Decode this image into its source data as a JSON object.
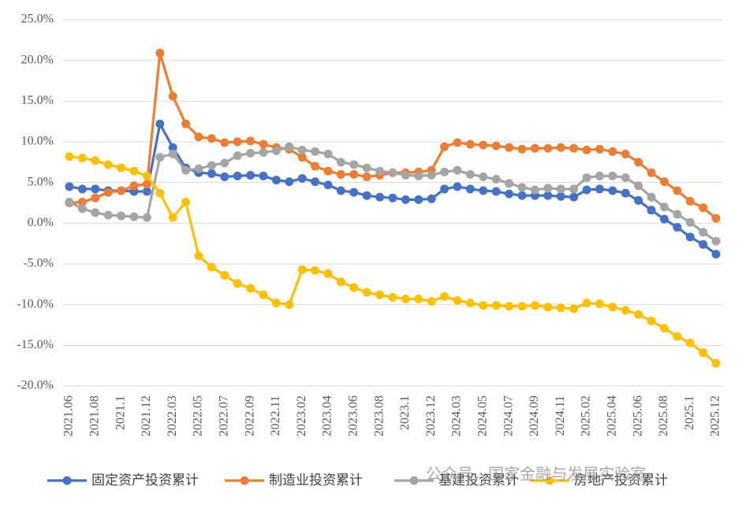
{
  "chart_data": {
    "type": "line",
    "categories": [
      "2021.06",
      null,
      "2021.08",
      null,
      "2021.1",
      null,
      "2021.12",
      null,
      "2022.03",
      null,
      "2022.05",
      null,
      "2022.07",
      null,
      "2022.09",
      null,
      "2022.11",
      null,
      "2023.02",
      null,
      "2023.04",
      null,
      "2023.06",
      null,
      "2023.08",
      null,
      "2023.1",
      null,
      "2023.12",
      null,
      "2024.03",
      null,
      "2024.05",
      null,
      "2024.07",
      null,
      "2024.09",
      null,
      "2024.11",
      null,
      "2025.02",
      null,
      "2025.04",
      null,
      "2025.06",
      null,
      "2025.08",
      null,
      "2025.1",
      null,
      "2025.12"
    ],
    "series": [
      {
        "name": "固定资产投资累计",
        "color": "#4472c4",
        "values": [
          4.5,
          4.2,
          4.2,
          4.0,
          4.0,
          3.9,
          3.9,
          12.2,
          9.3,
          6.8,
          6.2,
          6.1,
          5.7,
          5.8,
          5.9,
          5.8,
          5.3,
          5.1,
          5.5,
          5.1,
          4.7,
          4.0,
          3.8,
          3.4,
          3.2,
          3.1,
          2.9,
          2.9,
          3.0,
          4.2,
          4.5,
          4.2,
          4.0,
          3.9,
          3.6,
          3.4,
          3.4,
          3.4,
          3.3,
          3.2,
          4.1,
          4.2,
          4.0,
          3.7,
          2.8,
          1.6,
          0.5,
          -0.5,
          -1.7,
          -2.6,
          -3.8
        ]
      },
      {
        "name": "制造业投资累计",
        "color": "#ed7d31",
        "values": [
          2.5,
          2.6,
          3.1,
          3.8,
          4.0,
          4.6,
          4.8,
          20.9,
          15.6,
          12.2,
          10.6,
          10.4,
          9.9,
          10.0,
          10.1,
          9.7,
          9.3,
          9.1,
          8.1,
          7.0,
          6.4,
          6.0,
          6.0,
          5.7,
          5.9,
          6.2,
          6.2,
          6.3,
          6.5,
          9.4,
          9.9,
          9.7,
          9.6,
          9.5,
          9.3,
          9.1,
          9.2,
          9.2,
          9.3,
          9.2,
          9.0,
          9.1,
          8.8,
          8.5,
          7.5,
          6.2,
          5.1,
          4.0,
          2.7,
          1.9,
          0.6
        ]
      },
      {
        "name": "基建投资累计",
        "color": "#a5a5a5",
        "values": [
          2.6,
          1.8,
          1.3,
          1.0,
          0.9,
          0.8,
          0.7,
          8.1,
          8.5,
          6.5,
          6.7,
          7.1,
          7.4,
          8.3,
          8.6,
          8.7,
          8.9,
          9.4,
          9.0,
          8.8,
          8.5,
          7.5,
          7.2,
          6.8,
          6.4,
          6.2,
          5.9,
          5.8,
          5.9,
          6.3,
          6.5,
          6.0,
          5.7,
          5.4,
          4.9,
          4.4,
          4.1,
          4.3,
          4.2,
          4.2,
          5.6,
          5.8,
          5.8,
          5.6,
          4.6,
          3.2,
          2.0,
          1.1,
          0.1,
          -1.1,
          -2.2
        ]
      },
      {
        "name": "房地产投资累计",
        "color": "#ffc000",
        "values": [
          8.2,
          8.0,
          7.7,
          7.2,
          6.8,
          6.4,
          5.8,
          3.7,
          0.7,
          2.6,
          -4.0,
          -5.4,
          -6.4,
          -7.4,
          -8.0,
          -8.8,
          -9.8,
          -10.0,
          -5.7,
          -5.8,
          -6.2,
          -7.2,
          -7.9,
          -8.5,
          -8.8,
          -9.1,
          -9.3,
          -9.3,
          -9.6,
          -9.0,
          -9.5,
          -9.8,
          -10.1,
          -10.1,
          -10.2,
          -10.2,
          -10.1,
          -10.3,
          -10.4,
          -10.5,
          -9.8,
          -9.9,
          -10.3,
          -10.7,
          -11.2,
          -12.0,
          -12.9,
          -13.9,
          -14.7,
          -15.9,
          -17.2
        ]
      }
    ],
    "ylim": [
      -20,
      25
    ],
    "yticks": [
      {
        "value": -20,
        "label": "-20.0%"
      },
      {
        "value": -15,
        "label": "-15.0%"
      },
      {
        "value": -10,
        "label": "-10.0%"
      },
      {
        "value": -5,
        "label": "-5.0%"
      },
      {
        "value": 0,
        "label": "0.0%"
      },
      {
        "value": 5,
        "label": "5.0%"
      },
      {
        "value": 10,
        "label": "10.0%"
      },
      {
        "value": 15,
        "label": "15.0%"
      },
      {
        "value": 20,
        "label": "20.0%"
      },
      {
        "value": 25,
        "label": "25.0%"
      }
    ],
    "grid": true,
    "legend": "bottom"
  },
  "watermark": "公众号 · 国家金融与发展实验室"
}
